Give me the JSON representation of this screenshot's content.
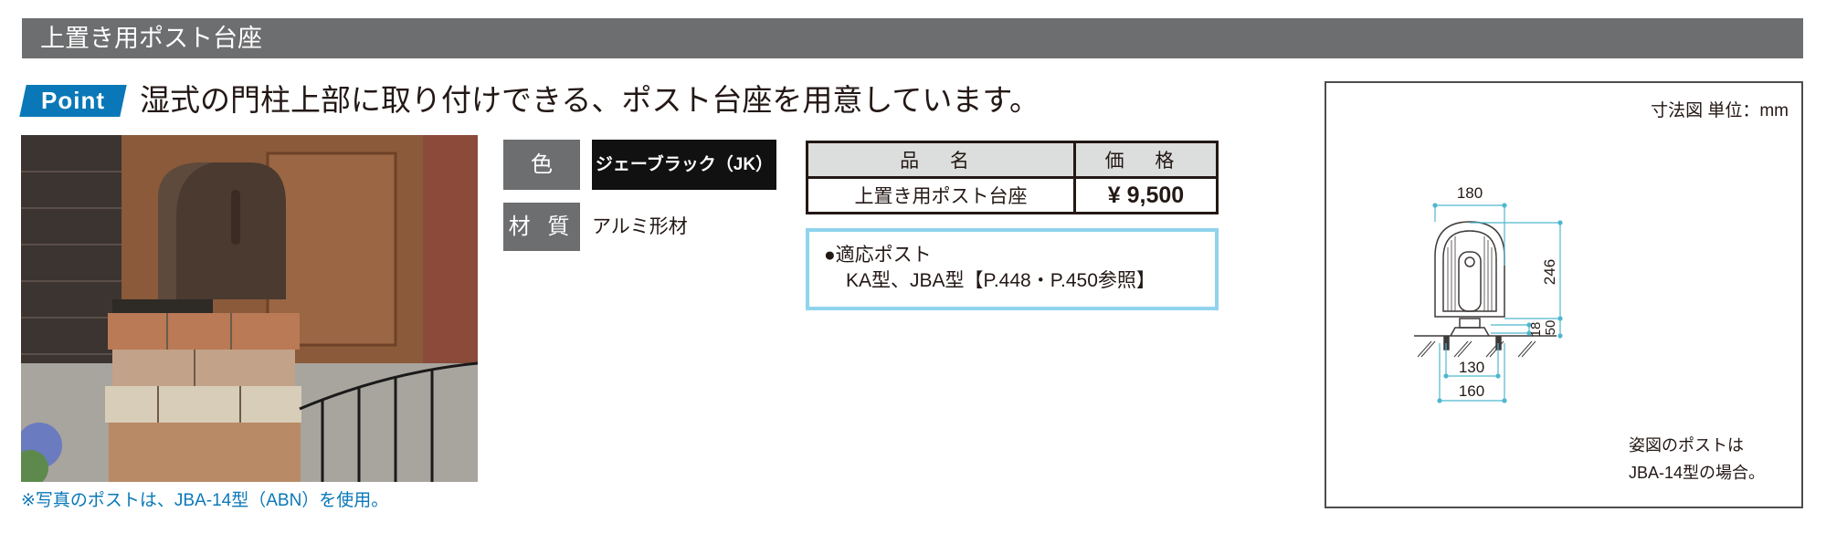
{
  "header": {
    "title": "上置き用ポスト台座"
  },
  "point": {
    "badge": "Point",
    "text": "湿式の門柱上部に取り付けできる、ポスト台座を用意しています。"
  },
  "photo": {
    "caption": "※写真のポストは、JBA-14型（ABN）を使用。"
  },
  "specs": {
    "color_label": "色",
    "color_value": "ジェーブラック（JK）",
    "material_label": "材 質",
    "material_value": "アルミ形材"
  },
  "price_table": {
    "headers": [
      "品 名",
      "価 格"
    ],
    "rows": [
      {
        "name": "上置き用ポスト台座",
        "price": "¥  9,500"
      }
    ]
  },
  "compatible": {
    "title": "●適応ポスト",
    "text": "KA型、JBA型【P.448・P.450参照】"
  },
  "diagram": {
    "title": "寸法図 単位：mm",
    "dimensions": {
      "width_top": "180",
      "height": "246",
      "base_height": "18",
      "total_base": "50",
      "inner_base": "130",
      "outer_base": "160"
    },
    "note_line1": "姿図のポストは",
    "note_line2": "JBA-14型の場合。"
  },
  "colors": {
    "header_bg": "#6d6e6f",
    "accent_blue": "#0a78b8",
    "box_border": "#8fd3ec",
    "dimension": "#4fb7cf"
  }
}
